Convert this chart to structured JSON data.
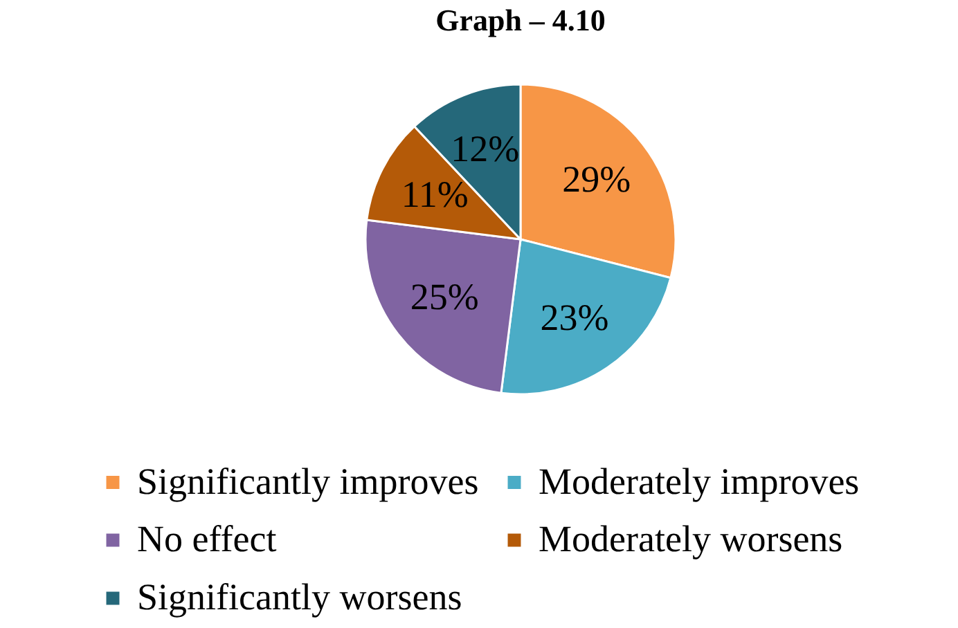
{
  "chart_data": {
    "type": "pie",
    "title": "Graph – 4.10",
    "categories": [
      "Significantly improves",
      "Moderately improves",
      "No effect",
      "Moderately worsens",
      "Significantly worsens"
    ],
    "values": [
      29,
      23,
      25,
      11,
      12
    ],
    "colors": [
      "#f79646",
      "#4bacc6",
      "#8064a2",
      "#b45a08",
      "#25687a"
    ],
    "value_labels": [
      "29%",
      "23%",
      "25%",
      "11%",
      "12%"
    ],
    "legend": "bottom"
  }
}
